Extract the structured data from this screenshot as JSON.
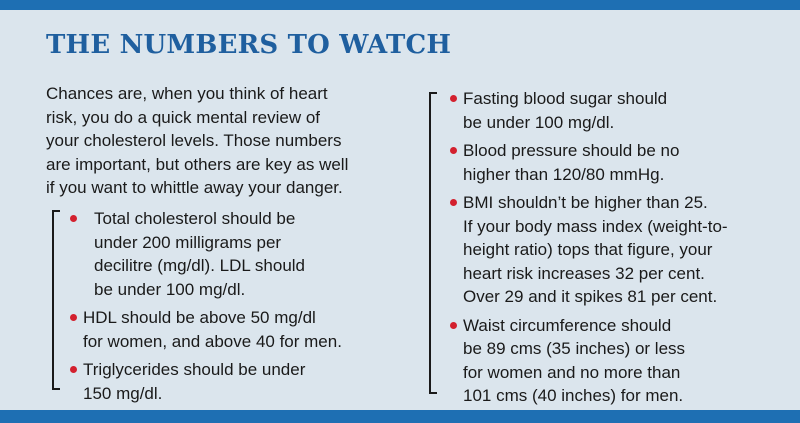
{
  "title": "THE NUMBERS TO WATCH",
  "intro": "Chances are, when you think of heart\nrisk, you do a quick mental review of\nyour cholesterol levels. Those numbers\nare important, but others are key as well\nif you want to whittle away your danger.",
  "left_list": [
    "Total cholesterol should be\nunder 200 milligrams per\ndecilitre (mg/dl). LDL should\nbe under 100 mg/dl.",
    "HDL should be above 50 mg/dl\nfor women, and above 40 for men.",
    "Triglycerides should be under\n150 mg/dl."
  ],
  "right_list": [
    "Fasting blood sugar should\nbe under 100 mg/dl.",
    "Blood pressure should be no\nhigher than 120/80 mmHg.",
    "BMI shouldn’t be higher than 25.\nIf your body mass index (weight-to-\nheight ratio) tops that figure, your\nheart risk increases 32 per cent.\nOver 29 and it spikes 81 per cent.",
    "Waist circumference should\nbe 89 cms (35 inches) or less\nfor women and no more than\n101 cms (40 inches) for men."
  ],
  "colors": {
    "background": "#dbe5ed",
    "bar": "#1e6fb3",
    "title": "#1f5f9f",
    "bullet": "#d3202e"
  }
}
